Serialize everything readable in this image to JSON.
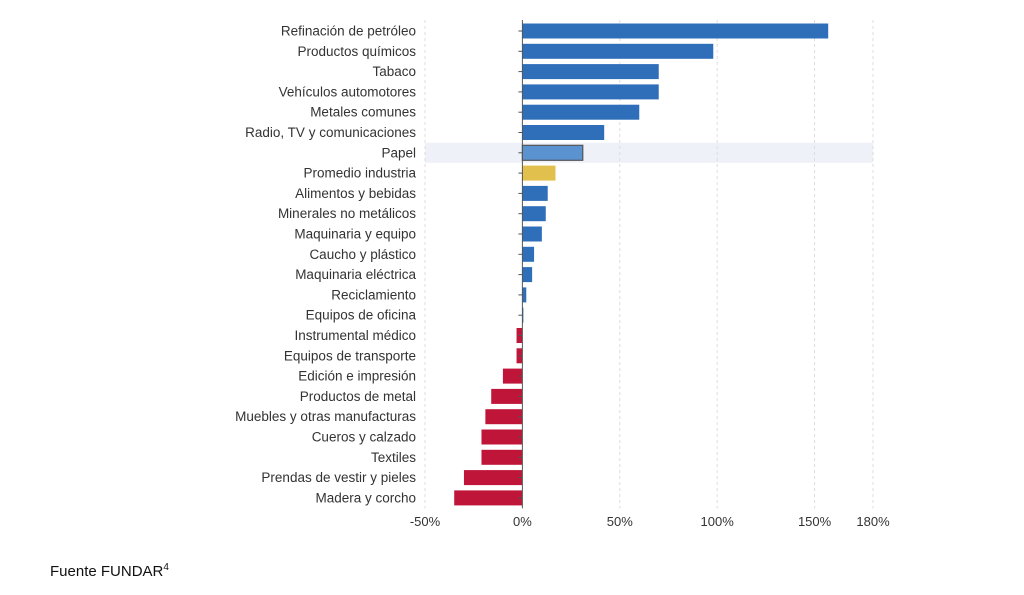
{
  "chart_data": {
    "type": "bar",
    "orientation": "horizontal",
    "title": "",
    "xlabel": "",
    "ylabel": "",
    "xlim": [
      -50,
      180
    ],
    "xticks": [
      -50,
      0,
      50,
      100,
      150,
      180
    ],
    "xtick_labels": [
      "-50%",
      "0%",
      "50%",
      "100%",
      "150%",
      "180%"
    ],
    "categories": [
      "Refinación de petróleo",
      "Productos químicos",
      "Tabaco",
      "Vehículos automotores",
      "Metales comunes",
      "Radio, TV y comunicaciones",
      "Papel",
      "Promedio industria",
      "Alimentos y bebidas",
      "Minerales no metálicos",
      "Maquinaria y equipo",
      "Caucho y plástico",
      "Maquinaria eléctrica",
      "Reciclamiento",
      "Equipos de oficina",
      "Instrumental médico",
      "Equipos de transporte",
      "Edición e impresión",
      "Productos de metal",
      "Muebles y otras manufacturas",
      "Cueros y calzado",
      "Textiles",
      "Prendas de vestir y pieles",
      "Madera y corcho"
    ],
    "values": [
      157,
      98,
      70,
      70,
      60,
      42,
      31,
      17,
      13,
      12,
      10,
      6,
      5,
      2,
      0.5,
      -3,
      -3,
      -10,
      -16,
      -19,
      -21,
      -21,
      -30,
      -35
    ],
    "highlight_index": 6,
    "average_index": 7,
    "colors": {
      "positive": "#2f6fba",
      "negative": "#bf1538",
      "average": "#e2c04d",
      "highlight": "#5a93d0",
      "highlight_band": "#eef2f8",
      "grid": "#dcdcdc",
      "axis": "#555555"
    }
  },
  "source": {
    "text": "Fuente FUNDAR",
    "footnote": "4"
  }
}
